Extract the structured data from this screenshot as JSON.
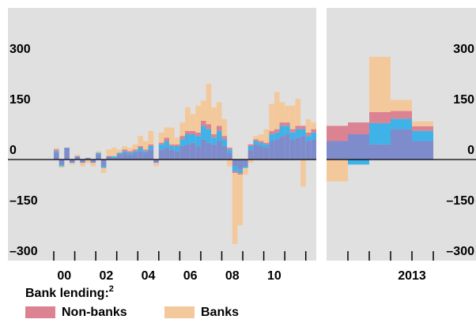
{
  "chart_data": [
    {
      "type": "stacked_bar",
      "categories": [
        "00",
        null,
        null,
        null,
        null,
        null,
        null,
        null,
        "02",
        null,
        null,
        null,
        null,
        null,
        null,
        null,
        "04",
        null,
        null,
        null,
        null,
        null,
        null,
        null,
        "06",
        null,
        null,
        null,
        null,
        null,
        null,
        null,
        "08",
        null,
        null,
        null,
        null,
        null,
        null,
        null,
        "10",
        null,
        null,
        null,
        null,
        null,
        null,
        null,
        null,
        null
      ],
      "series": [
        {
          "color": "#7f8ccc",
          "values": [
            20,
            -15,
            35,
            -10,
            10,
            -10,
            5,
            -10,
            15,
            -20,
            10,
            5,
            15,
            20,
            15,
            20,
            25,
            20,
            30,
            -10,
            30,
            35,
            30,
            25,
            40,
            45,
            50,
            40,
            60,
            50,
            45,
            55,
            40,
            20,
            -20,
            -30,
            -20,
            30,
            45,
            40,
            35,
            55,
            60,
            70,
            75,
            60,
            65,
            70,
            55,
            60
          ]
        },
        {
          "color": "#3fb2e8",
          "values": [
            5,
            -5,
            0,
            0,
            0,
            0,
            0,
            0,
            5,
            -5,
            0,
            5,
            5,
            5,
            5,
            5,
            10,
            5,
            10,
            0,
            15,
            20,
            10,
            15,
            20,
            30,
            25,
            30,
            40,
            40,
            20,
            30,
            20,
            10,
            -15,
            -10,
            -5,
            10,
            10,
            10,
            10,
            20,
            20,
            30,
            25,
            20,
            25,
            20,
            15,
            20
          ]
        },
        {
          "name": "Non-banks",
          "color": "#dc8393",
          "values": [
            5,
            0,
            0,
            0,
            0,
            0,
            0,
            0,
            0,
            0,
            0,
            0,
            0,
            5,
            5,
            5,
            5,
            5,
            5,
            0,
            5,
            10,
            5,
            5,
            10,
            10,
            10,
            10,
            15,
            15,
            10,
            15,
            10,
            5,
            -5,
            -5,
            0,
            5,
            5,
            5,
            5,
            10,
            10,
            10,
            10,
            10,
            10,
            10,
            10,
            10
          ]
        },
        {
          "name": "Banks",
          "color": "#f3c99c",
          "values": [
            5,
            -5,
            0,
            -5,
            5,
            -10,
            -10,
            -10,
            5,
            -15,
            20,
            25,
            10,
            10,
            10,
            15,
            30,
            25,
            40,
            -10,
            30,
            30,
            50,
            20,
            40,
            70,
            50,
            80,
            60,
            120,
            80,
            70,
            50,
            -20,
            -210,
            -150,
            -20,
            -10,
            10,
            20,
            40,
            80,
            110,
            60,
            50,
            70,
            80,
            -80,
            40,
            20
          ]
        }
      ],
      "ylim": [
        -300,
        450
      ],
      "yticks": [
        {
          "value": -300,
          "label": "–300"
        },
        {
          "value": -150,
          "label": "–150"
        },
        0,
        150,
        300
      ],
      "legend_title": "Bank lending:",
      "legend_title_note": "2"
    },
    {
      "type": "stacked_bar",
      "x_label": "2013",
      "categories": [
        null,
        null,
        null,
        null,
        null
      ],
      "series": [
        {
          "color": "#7f8ccc",
          "values": [
            55,
            75,
            45,
            90,
            55
          ]
        },
        {
          "color": "#3fb2e8",
          "values": [
            0,
            -15,
            63,
            31,
            30
          ]
        },
        {
          "color": "#dc8393",
          "values": [
            45,
            35,
            33,
            23,
            14
          ]
        },
        {
          "color": "#f3c99c",
          "values": [
            -65,
            0,
            164,
            33,
            14
          ]
        }
      ],
      "ylim": [
        -300,
        450
      ],
      "yticks": [
        {
          "value": -300,
          "label": "–300"
        },
        {
          "value": -150,
          "label": "–150"
        },
        0,
        150,
        300
      ]
    }
  ]
}
